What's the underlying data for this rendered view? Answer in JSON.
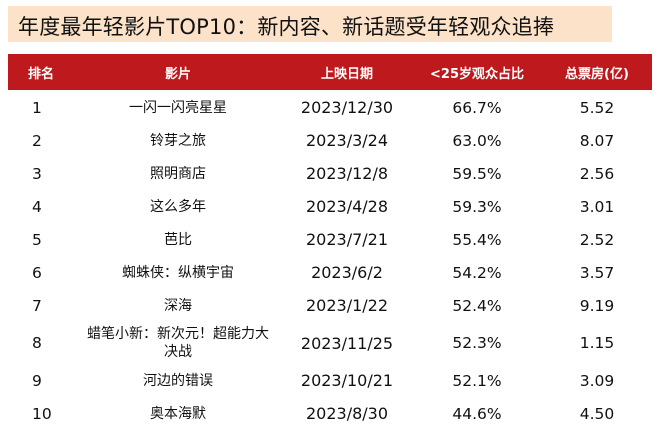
{
  "title": "年度最年轻影片TOP10：新内容、新话题受年轻观众追捧",
  "colors": {
    "header_bg": "#be1a1e",
    "title_bg": "#fbe2c8"
  },
  "columns": [
    "排名",
    "影片",
    "上映日期",
    "<25岁观众占比",
    "总票房(亿)"
  ],
  "rows": [
    {
      "rank": "1",
      "film": "一闪一闪亮星星",
      "date": "2023/12/30",
      "share": "66.7%",
      "box": "5.52"
    },
    {
      "rank": "2",
      "film": "铃芽之旅",
      "date": "2023/3/24",
      "share": "63.0%",
      "box": "8.07"
    },
    {
      "rank": "3",
      "film": "照明商店",
      "date": "2023/12/8",
      "share": "59.5%",
      "box": "2.56"
    },
    {
      "rank": "4",
      "film": "这么多年",
      "date": "2023/4/28",
      "share": "59.3%",
      "box": "3.01"
    },
    {
      "rank": "5",
      "film": "芭比",
      "date": "2023/7/21",
      "share": "55.4%",
      "box": "2.52"
    },
    {
      "rank": "6",
      "film": "蜘蛛侠：纵横宇宙",
      "date": "2023/6/2",
      "share": "54.2%",
      "box": "3.57"
    },
    {
      "rank": "7",
      "film": "深海",
      "date": "2023/1/22",
      "share": "52.4%",
      "box": "9.19"
    },
    {
      "rank": "8",
      "film": "蜡笔小新：新次元！超能力大决战",
      "date": "2023/11/25",
      "share": "52.3%",
      "box": "1.15"
    },
    {
      "rank": "9",
      "film": "河边的错误",
      "date": "2023/10/21",
      "share": "52.1%",
      "box": "3.09"
    },
    {
      "rank": "10",
      "film": "奥本海默",
      "date": "2023/8/30",
      "share": "44.6%",
      "box": "4.50"
    }
  ]
}
